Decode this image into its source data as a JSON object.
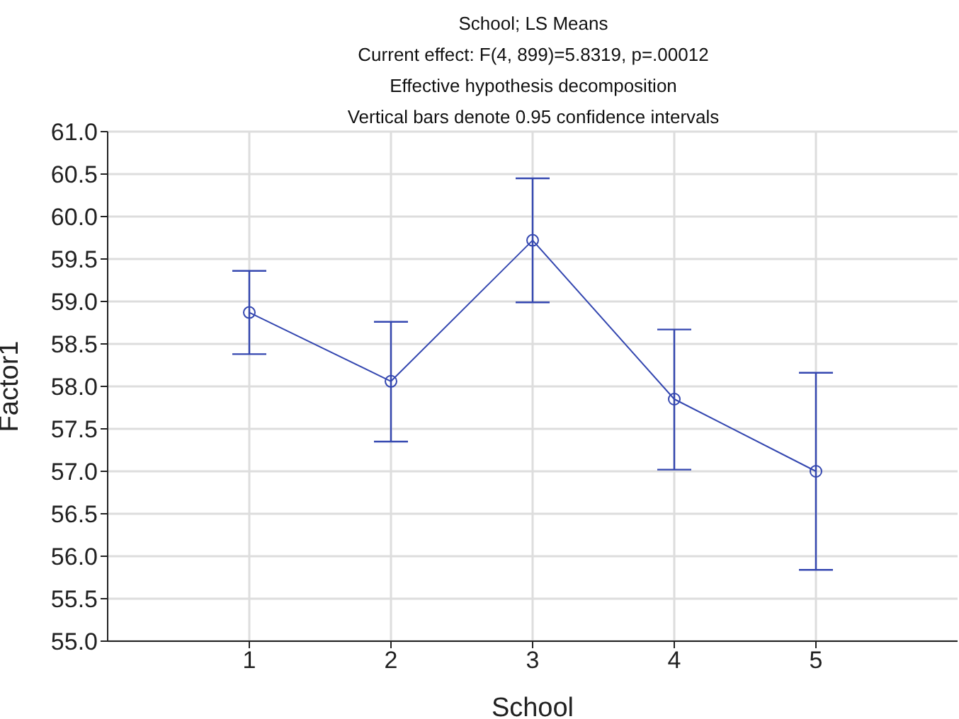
{
  "chart_data": {
    "type": "line",
    "title": "School; LS Means",
    "subtitle": "Current effect: F(4, 899)=5.8319, p=.00012",
    "annotations": [
      "Effective hypothesis decomposition",
      "Vertical bars denote 0.95 confidence intervals"
    ],
    "xlabel": "School",
    "ylabel": "Factor1",
    "x": [
      1,
      2,
      3,
      4,
      5
    ],
    "series": [
      {
        "color": "#3447b0",
        "values": [
          58.87,
          58.06,
          59.72,
          57.85,
          57.0
        ],
        "errors": [
          [
            58.38,
            59.36
          ],
          [
            57.35,
            58.76
          ],
          [
            58.99,
            60.45
          ],
          [
            57.02,
            58.67
          ],
          [
            55.84,
            58.16
          ]
        ]
      }
    ],
    "xlim": [
      0,
      6
    ],
    "xticks": [
      1,
      2,
      3,
      4,
      5
    ],
    "ylim": [
      55,
      61
    ],
    "yticks": [
      {
        "value": 55,
        "label": "55.0"
      },
      {
        "value": 55.5,
        "label": "55.5"
      },
      {
        "value": 56,
        "label": "56.0"
      },
      {
        "value": 56.5,
        "label": "56.5"
      },
      {
        "value": 57,
        "label": "57.0"
      },
      {
        "value": 57.5,
        "label": "57.5"
      },
      {
        "value": 58,
        "label": "58.0"
      },
      {
        "value": 58.5,
        "label": "58.5"
      },
      {
        "value": 59,
        "label": "59.0"
      },
      {
        "value": 59.5,
        "label": "59.5"
      },
      {
        "value": 60,
        "label": "60.0"
      },
      {
        "value": 60.5,
        "label": "60.5"
      },
      {
        "value": 61,
        "label": "61.0"
      }
    ],
    "grid": true,
    "marker": "circle",
    "line_style": "solid",
    "legend": false
  }
}
